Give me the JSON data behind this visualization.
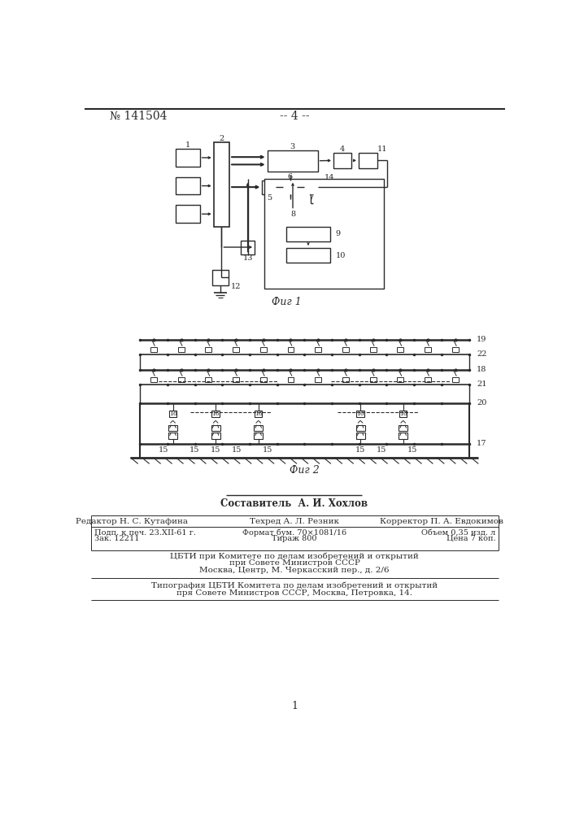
{
  "bg_color": "#ffffff",
  "line_color": "#2a2a2a",
  "header_text": "№ 141504",
  "page_num": "-- 4 --",
  "fig1_label": "Фиг 1",
  "fig2_label": "Фиг 2",
  "footer_sestavitel": "Составитель  А. И. Хохлов",
  "footer_editor": "Редактор Н. С. Кутафина",
  "footer_techred": "Техред А. Л. Резник",
  "footer_corr": "Корректор П. А. Евдокимов",
  "footer_date": "Подп. к печ. 23.XII-61 г.",
  "footer_format": "Формат бум. 70×1081/16",
  "footer_tirazh": "Тираж 800",
  "footer_obiem": "Объем 0,35 изд. л",
  "footer_zak": "Зак. 12211",
  "footer_cena": "Цена 7 коп.",
  "footer_cbti1": "ЦБТИ при Комитете по делам изобретений и открытий",
  "footer_cbti2": "при Совете Министров СССР",
  "footer_cbti3": "Москва, Центр, М. Черкасский пер., д. 2/6",
  "footer_tipogr1": "Типография ЦБТИ Комитета по делам изобретений и открытий",
  "footer_tipogr2": "пря Совете Министров СССР, Москва, Петровка, 14.",
  "page_number": "1"
}
